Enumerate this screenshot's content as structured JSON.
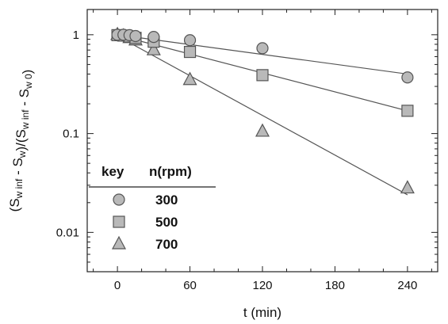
{
  "chart_data": {
    "type": "scatter",
    "xlabel": "t (min)",
    "ylabel": {
      "parts": [
        {
          "text": "(S",
          "sub": false
        },
        {
          "text": "w inf",
          "sub": true
        },
        {
          "text": " - S",
          "sub": false
        },
        {
          "text": "w",
          "sub": true
        },
        {
          "text": ")/(S",
          "sub": false
        },
        {
          "text": "w inf",
          "sub": true
        },
        {
          "text": " - S",
          "sub": false
        },
        {
          "text": "w 0",
          "sub": true
        },
        {
          "text": ")",
          "sub": false
        }
      ]
    },
    "x_scale": "linear",
    "y_scale": "log",
    "xlim": [
      -25,
      265
    ],
    "ylim": [
      0.004,
      1.8
    ],
    "x_ticks": [
      0,
      60,
      120,
      180,
      240
    ],
    "x_tick_labels": [
      "0",
      "60",
      "120",
      "180",
      "240"
    ],
    "y_ticks": [
      0.01,
      0.1,
      1
    ],
    "y_tick_labels": [
      "0.01",
      "0.1",
      "1"
    ],
    "grid": false,
    "legend": {
      "placement": "lower-left",
      "header_key": "key",
      "header_value": "n(rpm)"
    },
    "series": [
      {
        "name": "300",
        "marker": "circle",
        "points": [
          [
            0,
            1.0
          ],
          [
            5,
            1.0
          ],
          [
            10,
            0.99
          ],
          [
            15,
            0.97
          ],
          [
            30,
            0.95
          ],
          [
            60,
            0.88
          ],
          [
            120,
            0.73
          ],
          [
            240,
            0.37
          ]
        ],
        "fit": [
          [
            0,
            1.0
          ],
          [
            240,
            0.4
          ]
        ]
      },
      {
        "name": "500",
        "marker": "square",
        "points": [
          [
            0,
            0.99
          ],
          [
            5,
            0.98
          ],
          [
            10,
            0.96
          ],
          [
            15,
            0.93
          ],
          [
            30,
            0.85
          ],
          [
            60,
            0.67
          ],
          [
            120,
            0.39
          ],
          [
            240,
            0.17
          ]
        ],
        "fit": [
          [
            0,
            0.99
          ],
          [
            240,
            0.17
          ]
        ]
      },
      {
        "name": "700",
        "marker": "triangle",
        "points": [
          [
            0,
            1.0
          ],
          [
            5,
            0.97
          ],
          [
            10,
            0.93
          ],
          [
            15,
            0.88
          ],
          [
            30,
            0.7
          ],
          [
            60,
            0.35
          ],
          [
            120,
            0.105
          ],
          [
            240,
            0.028
          ]
        ],
        "fit": [
          [
            0,
            0.97
          ],
          [
            240,
            0.024
          ]
        ]
      }
    ],
    "colors": {
      "marker_fill": "#b9b9b9",
      "marker_stroke": "#555555",
      "line": "#555555",
      "axis": "#222222"
    }
  }
}
